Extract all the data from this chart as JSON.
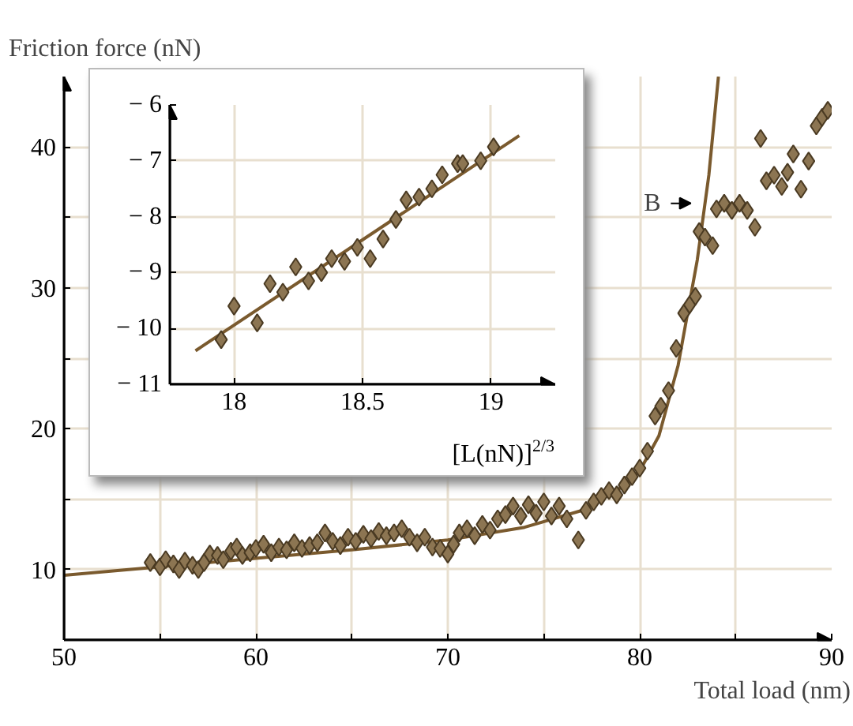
{
  "chart_data": [
    {
      "type": "scatter",
      "xlabel": "Total load (nm)",
      "ylabel": "Friction force (nN)",
      "xlim": [
        50,
        90
      ],
      "ylim": [
        5,
        45
      ],
      "xticks": [
        50,
        {
          "value": 55,
          "label": null
        },
        60,
        {
          "value": 65,
          "label": null
        },
        70,
        {
          "value": 75,
          "label": null
        },
        80,
        {
          "value": 85,
          "label": null
        },
        90
      ],
      "yticks": [
        10,
        {
          "value": 15,
          "label": null
        },
        20,
        {
          "value": 25,
          "label": null
        },
        30,
        {
          "value": 35,
          "label": null
        },
        40
      ],
      "grid": true,
      "annotations": [
        {
          "text": "B",
          "x": 82.9,
          "y": 36
        }
      ],
      "series": [
        {
          "type": "line",
          "color": "#7a5a2e",
          "x": [
            50,
            55,
            60,
            65,
            70,
            74,
            77,
            79,
            80,
            81,
            82,
            83,
            83.6,
            84.1
          ],
          "values": [
            9.6,
            10.2,
            10.8,
            11.4,
            12.1,
            13.0,
            14.2,
            15.8,
            17.0,
            19.5,
            24.5,
            32,
            38,
            45
          ]
        },
        {
          "type": "scatter",
          "color": "#8c7552",
          "marker": "diamond",
          "x": [
            54.5,
            55,
            55.3,
            55.7,
            56,
            56.3,
            56.7,
            57,
            57.3,
            57.6,
            58,
            58.3,
            58.7,
            59,
            59.3,
            59.7,
            60,
            60.4,
            60.8,
            61.2,
            61.6,
            62,
            62.4,
            62.8,
            63.2,
            63.6,
            64,
            64.4,
            64.8,
            65.2,
            65.6,
            66,
            66.4,
            66.8,
            67.2,
            67.6,
            68,
            68.4,
            68.8,
            69.2,
            69.6,
            70,
            70.3,
            70.6,
            71,
            71.4,
            71.8,
            72.2,
            72.6,
            73,
            73.4,
            73.8,
            74.2,
            74.6,
            75,
            75.4,
            75.8,
            76.2,
            76.8,
            77.2,
            77.6,
            78,
            78.4,
            78.8,
            79.2,
            79.6,
            80,
            80.4,
            80.8,
            81.1,
            81.5,
            81.9,
            82.3,
            82.6,
            82.9,
            83.1,
            83.4,
            83.8,
            84,
            84.4,
            84.8,
            85.2,
            85.6,
            86,
            86.3,
            86.6,
            87,
            87.4,
            87.7,
            88,
            88.4,
            88.8,
            89.2,
            89.5,
            89.8
          ],
          "values": [
            10.5,
            10.2,
            10.7,
            10.4,
            10.0,
            10.6,
            10.3,
            10.0,
            10.5,
            11.1,
            11.0,
            10.7,
            11.3,
            11.6,
            11.0,
            11.2,
            11.5,
            11.8,
            11.2,
            11.6,
            11.4,
            11.9,
            11.5,
            11.7,
            11.9,
            12.6,
            12.0,
            11.7,
            12.3,
            12.0,
            12.5,
            12.2,
            12.7,
            12.4,
            12.6,
            12.9,
            12.3,
            11.9,
            12.3,
            11.6,
            11.5,
            11.1,
            11.8,
            12.6,
            12.9,
            12.4,
            13.2,
            12.8,
            13.6,
            13.9,
            14.5,
            13.8,
            14.6,
            14.0,
            14.8,
            13.8,
            14.5,
            13.6,
            12.1,
            14.2,
            14.8,
            15.2,
            15.6,
            15.3,
            16.0,
            16.6,
            17.2,
            18.4,
            20.9,
            21.6,
            22.7,
            25.7,
            28.2,
            28.8,
            29.4,
            34.0,
            33.6,
            33.0,
            35.6,
            36.0,
            35.5,
            36.0,
            35.5,
            34.3,
            40.6,
            37.6,
            38.0,
            37.2,
            38.2,
            39.5,
            37.0,
            39.0,
            41.5,
            42.1,
            42.6
          ]
        }
      ]
    },
    {
      "type": "scatter",
      "xlabel": "[L(nN)]$^{2/3}$",
      "xlim": [
        17.75,
        19.25
      ],
      "ylim": [
        -11,
        -6
      ],
      "xticks": [
        18,
        18.5,
        19
      ],
      "yticks": [
        {
          "value": -11,
          "label": "− 11"
        },
        {
          "value": -10,
          "label": "− 10"
        },
        {
          "value": -9,
          "label": "− 9"
        },
        {
          "value": -8,
          "label": "− 8"
        },
        {
          "value": -7,
          "label": "− 7"
        },
        {
          "value": -6,
          "label": "− 6"
        }
      ],
      "grid": true,
      "series": [
        {
          "type": "line",
          "color": "#7a5a2e",
          "x": [
            17.85,
            19.11
          ],
          "values": [
            -10.4,
            -6.55
          ]
        },
        {
          "type": "scatter",
          "color": "#8c7552",
          "marker": "diamond",
          "x": [
            17.95,
            18.0,
            18.09,
            18.14,
            18.19,
            18.24,
            18.29,
            18.34,
            18.38,
            18.43,
            18.48,
            18.53,
            18.58,
            18.63,
            18.67,
            18.72,
            18.77,
            18.81,
            18.87,
            18.89,
            18.96,
            19.01
          ],
          "values": [
            -10.2,
            -9.6,
            -9.9,
            -9.2,
            -9.35,
            -8.9,
            -9.15,
            -9.0,
            -8.75,
            -8.8,
            -8.55,
            -8.75,
            -8.4,
            -8.05,
            -7.7,
            -7.65,
            -7.5,
            -7.25,
            -7.05,
            -7.05,
            -7.0,
            -6.75
          ]
        }
      ]
    }
  ]
}
